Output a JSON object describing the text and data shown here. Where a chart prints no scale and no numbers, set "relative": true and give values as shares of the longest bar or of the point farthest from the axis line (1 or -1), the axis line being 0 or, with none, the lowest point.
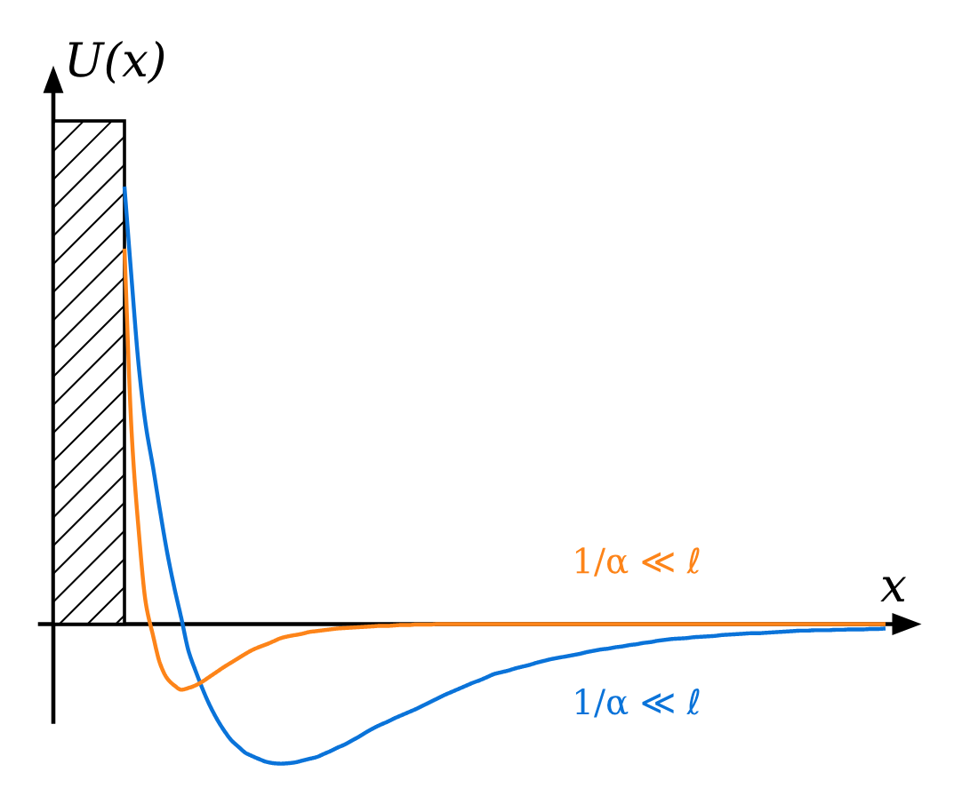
{
  "chart_data": {
    "type": "line",
    "relative": true,
    "xlabel": "x",
    "ylabel": "U(x)",
    "categories": [
      null,
      null,
      null,
      null,
      null,
      null,
      null,
      null,
      null,
      null,
      null,
      null,
      null,
      null,
      null,
      null,
      null,
      null,
      null,
      null,
      null,
      null,
      null,
      null,
      null,
      null,
      null,
      null,
      null,
      null,
      null,
      null,
      null,
      null,
      null,
      null,
      null,
      null,
      null,
      null,
      null,
      null,
      null,
      null,
      null,
      null,
      null,
      null,
      null,
      null,
      null,
      null,
      null,
      null,
      null,
      null,
      null,
      null,
      null,
      null,
      null,
      null,
      null,
      null,
      null,
      null,
      null,
      null,
      null,
      null,
      null,
      null,
      null,
      null,
      null,
      null,
      null,
      null,
      null,
      null,
      null,
      null,
      null,
      null,
      null,
      null,
      null,
      null,
      null,
      null,
      null,
      null,
      null,
      null,
      null,
      null,
      null,
      null,
      null,
      null,
      null,
      null,
      null,
      null,
      null,
      null,
      null,
      null,
      null,
      null,
      null,
      null,
      null,
      null,
      null,
      null,
      null,
      null
    ],
    "series": [
      {
        "name": "1/α ≪ ℓ",
        "color": "#0a73d9",
        "values": [
          null,
          null,
          null,
          null,
          null,
          null,
          null,
          null,
          null,
          null,
          1,
          0.789,
          0.591,
          0.454,
          0.36,
          0.259,
          0.164,
          0.084,
          0.013,
          -0.061,
          -0.107,
          -0.149,
          -0.186,
          -0.217,
          -0.243,
          -0.265,
          -0.28,
          -0.294,
          -0.302,
          -0.309,
          -0.315,
          -0.318,
          -0.319,
          -0.318,
          -0.316,
          -0.312,
          -0.308,
          -0.304,
          -0.297,
          -0.29,
          -0.282,
          -0.275,
          -0.266,
          -0.257,
          -0.247,
          -0.238,
          -0.23,
          -0.223,
          -0.215,
          -0.208,
          -0.201,
          -0.194,
          -0.186,
          -0.178,
          -0.17,
          -0.162,
          -0.155,
          -0.148,
          -0.141,
          -0.134,
          -0.128,
          -0.121,
          -0.114,
          -0.11,
          -0.106,
          -0.101,
          -0.097,
          -0.093,
          -0.088,
          -0.084,
          -0.08,
          -0.077,
          -0.074,
          -0.071,
          -0.068,
          -0.064,
          -0.061,
          -0.058,
          -0.056,
          -0.053,
          -0.051,
          -0.048,
          -0.046,
          -0.043,
          -0.041,
          -0.038,
          -0.036,
          -0.034,
          -0.033,
          -0.032,
          -0.03,
          -0.029,
          -0.028,
          -0.027,
          -0.025,
          -0.024,
          -0.023,
          -0.022,
          -0.021,
          -0.021,
          -0.02,
          -0.019,
          -0.018,
          -0.017,
          -0.016,
          -0.015,
          -0.015,
          -0.014,
          -0.014,
          -0.014,
          -0.013,
          -0.013,
          -0.012,
          -0.012,
          -0.012,
          -0.011,
          -0.011,
          -0.01
        ]
      },
      {
        "name": "1/α ≪ ℓ",
        "color": "#fd8419",
        "values": [
          null,
          null,
          null,
          null,
          null,
          null,
          null,
          null,
          null,
          null,
          0.858,
          0.44,
          0.214,
          0.048,
          -0.025,
          -0.09,
          -0.124,
          -0.14,
          -0.15,
          -0.146,
          -0.14,
          -0.131,
          -0.12,
          -0.109,
          -0.098,
          -0.088,
          -0.078,
          -0.068,
          -0.059,
          -0.052,
          -0.046,
          -0.039,
          -0.032,
          -0.028,
          -0.025,
          -0.022,
          -0.018,
          -0.016,
          -0.014,
          -0.012,
          -0.01,
          -0.009,
          -0.008,
          -0.007,
          -0.006,
          -0.005,
          -0.004,
          -0.004,
          -0.003,
          -0.002,
          -0.002,
          -0.001,
          -0.001,
          -0.001,
          0,
          0,
          0,
          0,
          0,
          0,
          0,
          0,
          0,
          0,
          0,
          0,
          0,
          0,
          0,
          0,
          0,
          0,
          0,
          0,
          0,
          0,
          0,
          0,
          0,
          0,
          0,
          0,
          0,
          0,
          0,
          0,
          0,
          0,
          0,
          0,
          0,
          0,
          0,
          0,
          0,
          0,
          0,
          0,
          0,
          0,
          0,
          0,
          0,
          0,
          0,
          0,
          0,
          0,
          0,
          0,
          0,
          0,
          0,
          0,
          0,
          0,
          0,
          0
        ]
      }
    ]
  }
}
